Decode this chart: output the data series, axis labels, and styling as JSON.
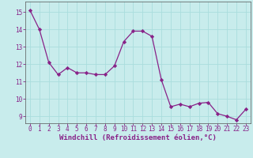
{
  "x": [
    0,
    1,
    2,
    3,
    4,
    5,
    6,
    7,
    8,
    9,
    10,
    11,
    12,
    13,
    14,
    15,
    16,
    17,
    18,
    19,
    20,
    21,
    22,
    23
  ],
  "y": [
    15.1,
    14.0,
    12.1,
    11.4,
    11.8,
    11.5,
    11.5,
    11.4,
    11.4,
    11.9,
    13.3,
    13.9,
    13.9,
    13.6,
    11.1,
    9.55,
    9.7,
    9.55,
    9.75,
    9.8,
    9.15,
    9.0,
    8.8,
    9.4
  ],
  "line_color": "#882288",
  "marker": "D",
  "markersize": 2.2,
  "linewidth": 0.9,
  "bg_color": "#c8ecec",
  "grid_color": "#aadddd",
  "xlabel": "Windchill (Refroidissement éolien,°C)",
  "xlabel_color": "#882288",
  "xlabel_fontsize": 6.5,
  "tick_color": "#882288",
  "tick_fontsize": 5.5,
  "ylim": [
    8.6,
    15.6
  ],
  "xlim": [
    -0.5,
    23.5
  ],
  "yticks": [
    9,
    10,
    11,
    12,
    13,
    14,
    15
  ],
  "xticks": [
    0,
    1,
    2,
    3,
    4,
    5,
    6,
    7,
    8,
    9,
    10,
    11,
    12,
    13,
    14,
    15,
    16,
    17,
    18,
    19,
    20,
    21,
    22,
    23
  ]
}
